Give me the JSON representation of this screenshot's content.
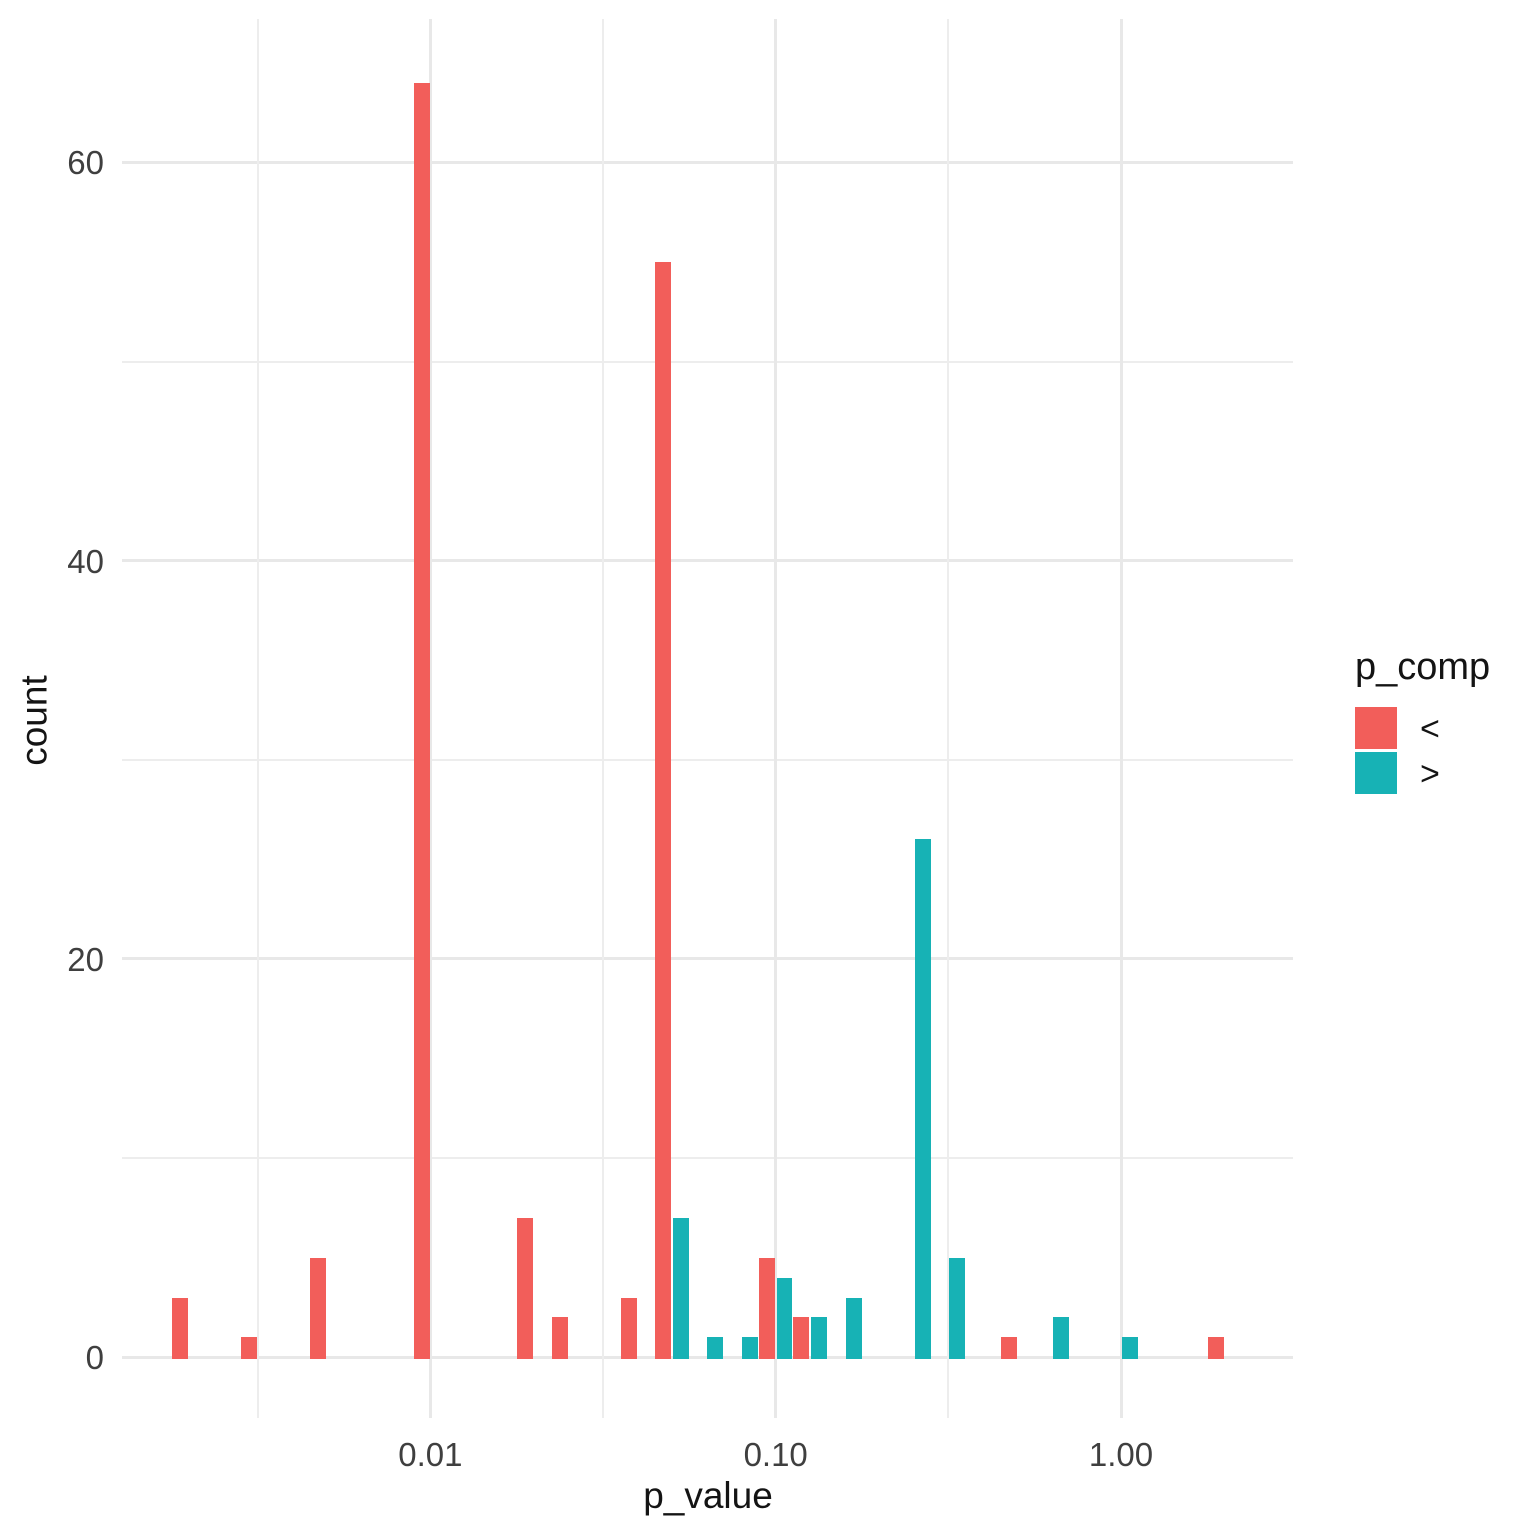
{
  "chart_data": {
    "type": "bar",
    "variant": "histogram, dodged pairs, log10 x-axis, ggplot minimal theme",
    "title": "",
    "xlabel": "p_value",
    "ylabel": "count",
    "x_scale": "log10",
    "xlim_log10": [
      -2.893,
      0.498
    ],
    "ylim": [
      -3.05,
      67.2
    ],
    "binwidth_log10": 0.1,
    "grid": true,
    "x_major_ticks": [
      {
        "log10": -2,
        "p": 0.01,
        "label": "0.01"
      },
      {
        "log10": -1,
        "p": 0.1,
        "label": "0.10"
      },
      {
        "log10": 0,
        "p": 1.0,
        "label": "1.00"
      }
    ],
    "x_minor_log10": [
      -2.5,
      -1.5,
      -0.5,
      0.5
    ],
    "y_major_ticks": [
      {
        "value": 0,
        "label": "0"
      },
      {
        "value": 20,
        "label": "20"
      },
      {
        "value": 40,
        "label": "40"
      },
      {
        "value": 60,
        "label": "60"
      }
    ],
    "y_minor": [
      10,
      30,
      50
    ],
    "legend": {
      "title": "p_comp",
      "position": "right",
      "entries": [
        {
          "label": "<",
          "color": "#f25e5a"
        },
        {
          "label": ">",
          "color": "#17b2b5"
        }
      ]
    },
    "series": [
      {
        "name": "<",
        "color": "#f25e5a",
        "dodge_slot": 0,
        "bins": [
          {
            "log10_center": -2.7,
            "p_center": 0.002,
            "count": 3
          },
          {
            "log10_center": -2.5,
            "p_center": 0.0032,
            "count": 1
          },
          {
            "log10_center": -2.3,
            "p_center": 0.005,
            "count": 5
          },
          {
            "log10_center": -2.0,
            "p_center": 0.01,
            "count": 64
          },
          {
            "log10_center": -1.7,
            "p_center": 0.02,
            "count": 7
          },
          {
            "log10_center": -1.6,
            "p_center": 0.025,
            "count": 2
          },
          {
            "log10_center": -1.4,
            "p_center": 0.04,
            "count": 3
          },
          {
            "log10_center": -1.3,
            "p_center": 0.05,
            "count": 55
          },
          {
            "log10_center": -1.0,
            "p_center": 0.1,
            "count": 5
          },
          {
            "log10_center": -0.9,
            "p_center": 0.126,
            "count": 2
          },
          {
            "log10_center": -0.3,
            "p_center": 0.5,
            "count": 1
          },
          {
            "log10_center": 0.3,
            "p_center": 2.0,
            "count": 1
          }
        ]
      },
      {
        "name": ">",
        "color": "#17b2b5",
        "dodge_slot": 1,
        "bins": [
          {
            "log10_center": -1.3,
            "p_center": 0.05,
            "count": 7
          },
          {
            "log10_center": -1.2,
            "p_center": 0.063,
            "count": 1
          },
          {
            "log10_center": -1.1,
            "p_center": 0.079,
            "count": 1
          },
          {
            "log10_center": -1.0,
            "p_center": 0.1,
            "count": 4
          },
          {
            "log10_center": -0.9,
            "p_center": 0.126,
            "count": 2
          },
          {
            "log10_center": -0.8,
            "p_center": 0.158,
            "count": 3
          },
          {
            "log10_center": -0.6,
            "p_center": 0.25,
            "count": 26
          },
          {
            "log10_center": -0.5,
            "p_center": 0.316,
            "count": 5
          },
          {
            "log10_center": -0.2,
            "p_center": 0.63,
            "count": 2
          },
          {
            "log10_center": 0.0,
            "p_center": 1.0,
            "count": 1
          }
        ]
      }
    ]
  }
}
